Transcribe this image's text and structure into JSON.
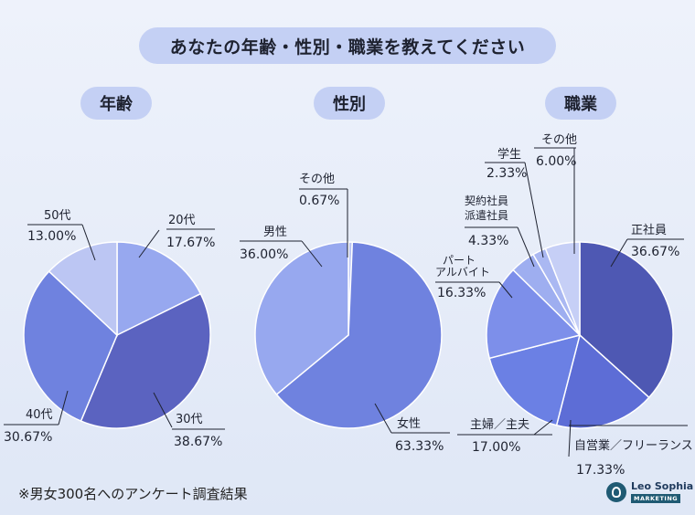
{
  "title": "あなたの年齢・性別・職業を教えてください",
  "footnote": "※男女300名へのアンケート調査結果",
  "logo": {
    "name": "Leo Sophia",
    "sub": "MARKETING"
  },
  "colors": {
    "background": "#e6ecf8",
    "pill": "#c4d0f4",
    "slice_dark": "#5b63c0",
    "slice_mid": "#6f82df",
    "slice_light": "#97a8ef",
    "slice_pale": "#bcc6f3"
  },
  "chart_data": [
    {
      "type": "pie",
      "title": "年齢",
      "categories": [
        "20代",
        "30代",
        "40代",
        "50代"
      ],
      "values": [
        17.67,
        38.67,
        30.67,
        13.0
      ],
      "labels": [
        "17.67%",
        "38.67%",
        "30.67%",
        "13.00%"
      ],
      "colors": [
        "#97a8ef",
        "#5b63c0",
        "#6f82df",
        "#bcc6f3"
      ]
    },
    {
      "type": "pie",
      "title": "性別",
      "categories": [
        "その他",
        "女性",
        "男性"
      ],
      "values": [
        0.67,
        63.33,
        36.0
      ],
      "labels": [
        "0.67%",
        "63.33%",
        "36.00%"
      ],
      "colors": [
        "#bcc6f3",
        "#6f82df",
        "#97a8ef"
      ]
    },
    {
      "type": "pie",
      "title": "職業",
      "categories": [
        "正社員",
        "自営業／フリーランス",
        "主婦／主夫",
        "パート アルバイト",
        "契約社員 派遣社員",
        "学生",
        "その他"
      ],
      "values": [
        36.67,
        17.33,
        17.0,
        16.33,
        4.33,
        2.33,
        6.0
      ],
      "labels": [
        "36.67%",
        "17.33%",
        "17.00%",
        "16.33%",
        "4.33%",
        "2.33%",
        "6.00%"
      ],
      "colors": [
        "#4e58b3",
        "#5d6dd6",
        "#6b80e4",
        "#7d8fea",
        "#9eaef0",
        "#aab8f2",
        "#c6cff6"
      ]
    }
  ]
}
